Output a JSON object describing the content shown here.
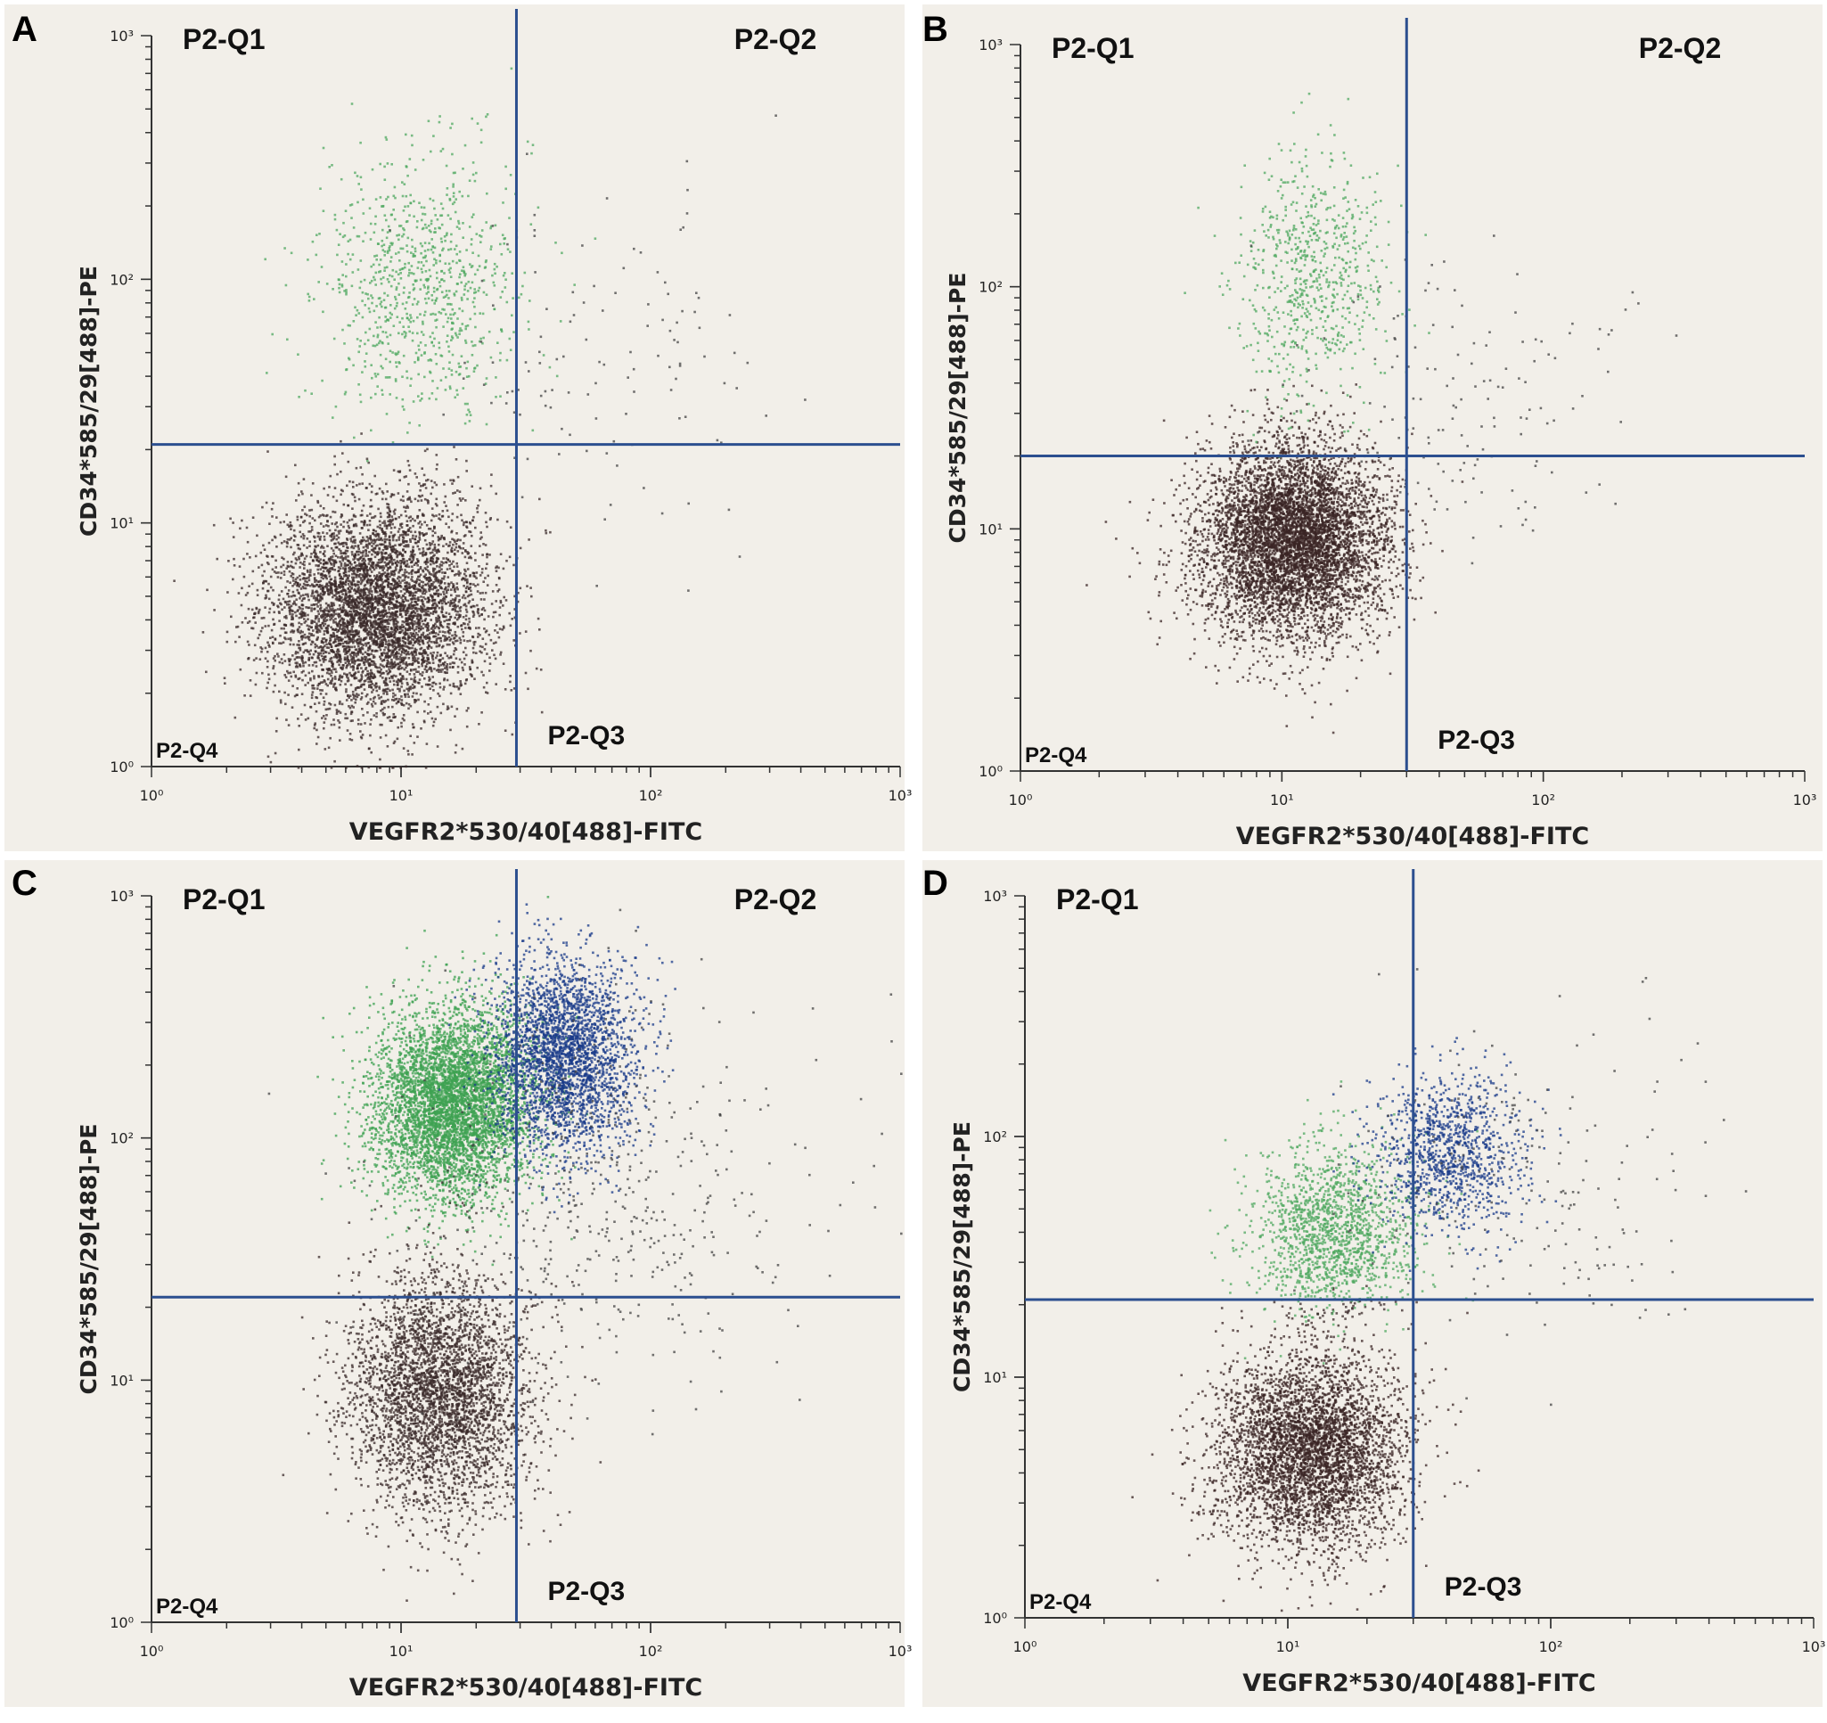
{
  "chart_data": [
    {
      "type": "scatter",
      "panel": "A",
      "xlabel": "VEGFR2*530/40[488]-FITC",
      "ylabel": "CD34*585/29[488]-PE",
      "scale": "log",
      "xlim": [
        1,
        1000
      ],
      "ylim": [
        1,
        1000
      ],
      "xticks": [
        "10⁰",
        "10¹",
        "10²",
        "10³"
      ],
      "yticks": [
        "10⁰",
        "10¹",
        "10²",
        "10³"
      ],
      "gate_x": 29,
      "gate_y": 21,
      "quadrants": [
        "P2-Q1",
        "P2-Q2",
        "P2-Q3",
        "P2-Q4"
      ],
      "populations": [
        {
          "name": "black",
          "color": "#3a2a2a",
          "center": [
            8,
            4.5
          ],
          "spread": [
            0.22,
            0.22
          ],
          "n": 5200
        },
        {
          "name": "green",
          "color": "#4fa860",
          "center": [
            12,
            95
          ],
          "spread": [
            0.2,
            0.28
          ],
          "n": 900
        },
        {
          "name": "scatter",
          "color": "#444444",
          "center": [
            60,
            50
          ],
          "spread": [
            0.35,
            0.35
          ],
          "n": 120
        }
      ]
    },
    {
      "type": "scatter",
      "panel": "B",
      "xlabel": "VEGFR2*530/40[488]-FITC",
      "ylabel": "CD34*585/29[488]-PE",
      "scale": "log",
      "xlim": [
        1,
        1000
      ],
      "ylim": [
        1,
        1000
      ],
      "xticks": [
        "10⁰",
        "10¹",
        "10²",
        "10³"
      ],
      "yticks": [
        "10⁰",
        "10¹",
        "10²",
        "10³"
      ],
      "gate_x": 30,
      "gate_y": 20,
      "quadrants": [
        "P2-Q1",
        "P2-Q2",
        "P2-Q3",
        "P2-Q4"
      ],
      "populations": [
        {
          "name": "black",
          "color": "#3a2424",
          "center": [
            11,
            9
          ],
          "spread": [
            0.18,
            0.2
          ],
          "n": 6000
        },
        {
          "name": "green",
          "color": "#4fa860",
          "center": [
            13,
            110
          ],
          "spread": [
            0.15,
            0.25
          ],
          "n": 700
        },
        {
          "name": "scatter",
          "color": "#444444",
          "center": [
            50,
            35
          ],
          "spread": [
            0.3,
            0.3
          ],
          "n": 150
        }
      ]
    },
    {
      "type": "scatter",
      "panel": "C",
      "xlabel": "VEGFR2*530/40[488]-FITC",
      "ylabel": "CD34*585/29[488]-PE",
      "scale": "log",
      "xlim": [
        1,
        1000
      ],
      "ylim": [
        1,
        1000
      ],
      "xticks": [
        "10⁰",
        "10¹",
        "10²",
        "10³"
      ],
      "yticks": [
        "10⁰",
        "10¹",
        "10²",
        "10³"
      ],
      "gate_x": 29,
      "gate_y": 22,
      "quadrants": [
        "P2-Q1",
        "P2-Q2",
        "P2-Q3",
        "P2-Q4"
      ],
      "populations": [
        {
          "name": "green",
          "color": "#3ea252",
          "center": [
            16,
            140
          ],
          "spread": [
            0.16,
            0.2
          ],
          "n": 5000
        },
        {
          "name": "blue",
          "color": "#1a3b8a",
          "center": [
            45,
            220
          ],
          "spread": [
            0.14,
            0.2
          ],
          "n": 2800
        },
        {
          "name": "black",
          "color": "#3a2a2a",
          "center": [
            14,
            9
          ],
          "spread": [
            0.18,
            0.25
          ],
          "n": 3600
        },
        {
          "name": "scatter",
          "color": "#444444",
          "center": [
            60,
            60
          ],
          "spread": [
            0.4,
            0.4
          ],
          "n": 500
        }
      ]
    },
    {
      "type": "scatter",
      "panel": "D",
      "xlabel": "VEGFR2*530/40[488]-FITC",
      "ylabel": "CD34*585/29[488]-PE",
      "scale": "log",
      "xlim": [
        1,
        1000
      ],
      "ylim": [
        1,
        1000
      ],
      "xticks": [
        "10⁰",
        "10¹",
        "10²",
        "10³"
      ],
      "yticks": [
        "10⁰",
        "10¹",
        "10²",
        "10³"
      ],
      "gate_x": 30,
      "gate_y": 21,
      "quadrants": [
        "P2-Q1",
        "",
        "P2-Q3",
        "P2-Q4"
      ],
      "populations": [
        {
          "name": "black",
          "color": "#3a2424",
          "center": [
            12,
            5
          ],
          "spread": [
            0.18,
            0.2
          ],
          "n": 4200
        },
        {
          "name": "green",
          "color": "#4fa860",
          "center": [
            15,
            40
          ],
          "spread": [
            0.16,
            0.18
          ],
          "n": 1600
        },
        {
          "name": "blue",
          "color": "#1a3b8a",
          "center": [
            40,
            85
          ],
          "spread": [
            0.14,
            0.16
          ],
          "n": 1100
        },
        {
          "name": "scatter",
          "color": "#444444",
          "center": [
            80,
            60
          ],
          "spread": [
            0.35,
            0.35
          ],
          "n": 200
        }
      ]
    }
  ],
  "panels": {
    "a": {
      "letter": "A"
    },
    "b": {
      "letter": "B"
    },
    "c": {
      "letter": "C"
    },
    "d": {
      "letter": "D"
    }
  },
  "style": {
    "gate_line_color": "#2c4f8f",
    "background": "#f2efe9"
  }
}
